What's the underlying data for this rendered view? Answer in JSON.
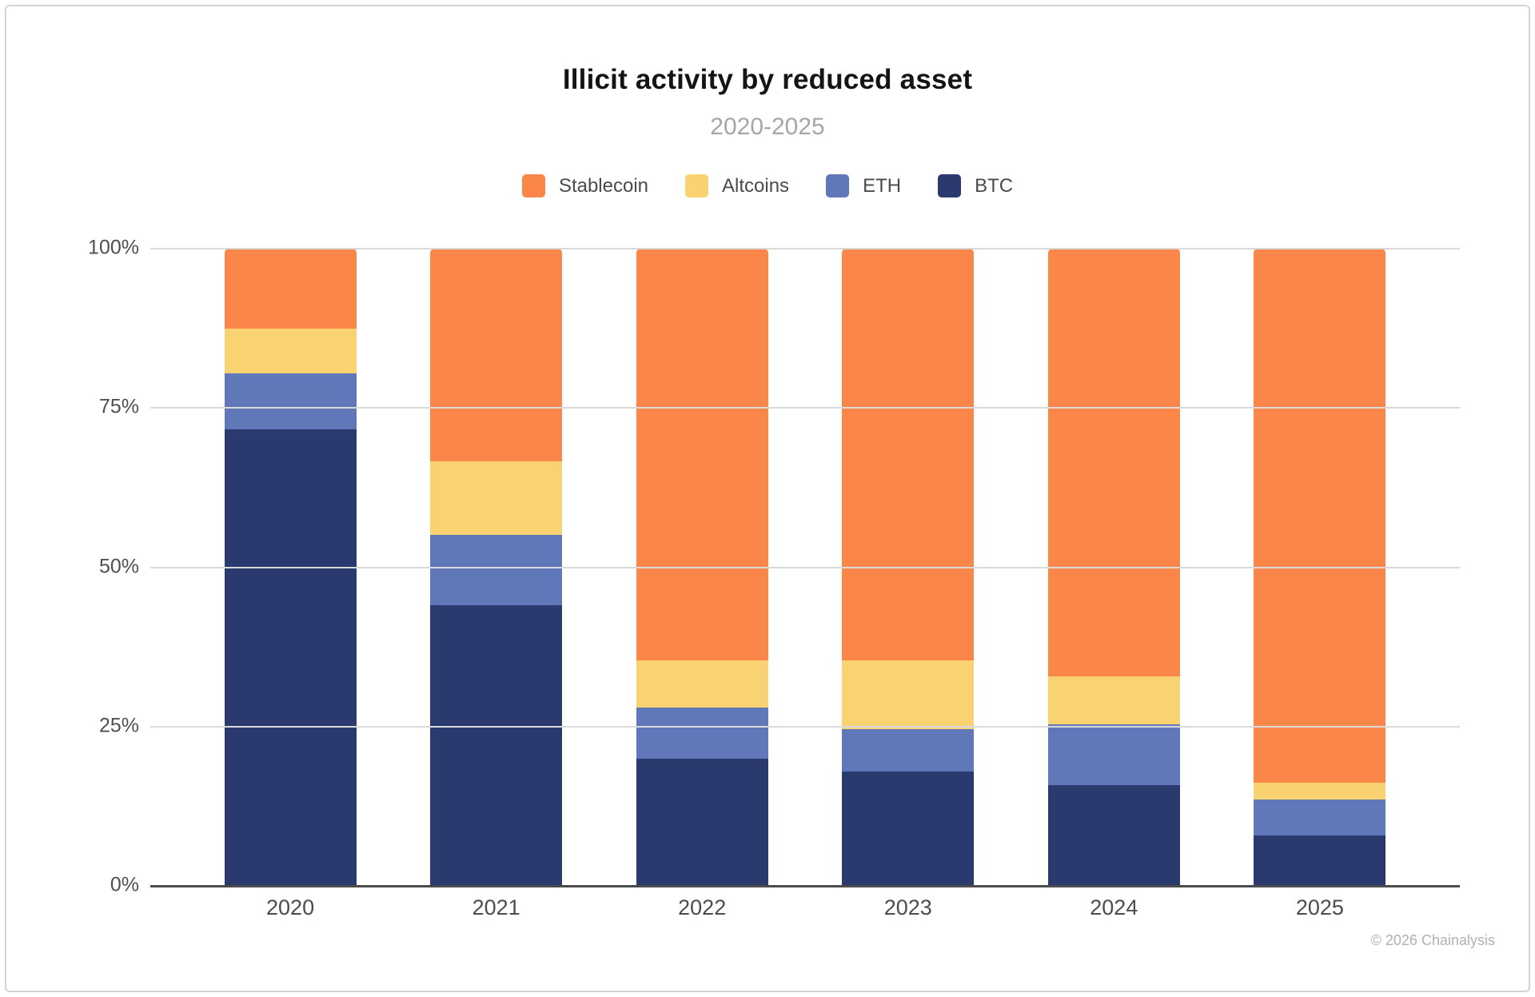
{
  "header": {
    "title": "Illicit activity by reduced asset",
    "subtitle": "2020-2025"
  },
  "legend": [
    {
      "label": "Stablecoin",
      "color": "#FA864A"
    },
    {
      "label": "Altcoins",
      "color": "#F9D271"
    },
    {
      "label": "ETH",
      "color": "#6078BA"
    },
    {
      "label": "BTC",
      "color": "#2A3A6E"
    }
  ],
  "chart_data": {
    "type": "bar",
    "stacked": true,
    "title": "Illicit activity by reduced asset",
    "subtitle": "2020-2025",
    "categories": [
      "2020",
      "2021",
      "2022",
      "2023",
      "2024",
      "2025"
    ],
    "series": [
      {
        "name": "BTC",
        "color": "#2A3A6E",
        "values": [
          71.5,
          43.9,
          19.8,
          17.8,
          15.7,
          7.8
        ]
      },
      {
        "name": "ETH",
        "color": "#6078BA",
        "values": [
          8.8,
          11.1,
          8.0,
          6.7,
          9.5,
          5.6
        ]
      },
      {
        "name": "Altcoins",
        "color": "#F9D271",
        "values": [
          7.0,
          11.5,
          7.5,
          10.8,
          7.5,
          2.7
        ]
      },
      {
        "name": "Stablecoin",
        "color": "#FA864A",
        "values": [
          12.7,
          33.5,
          64.7,
          64.7,
          67.3,
          83.9
        ]
      }
    ],
    "stack_order_bottom_to_top": [
      "BTC",
      "ETH",
      "Altcoins",
      "Stablecoin"
    ],
    "unit": "%",
    "y_ticks": [
      "100%",
      "75%",
      "50%",
      "25%",
      "0%"
    ],
    "ylim": [
      0,
      100
    ],
    "grid": true,
    "legend_position": "top"
  },
  "footer": {
    "copyright": "© 2026 Chainalysis"
  }
}
